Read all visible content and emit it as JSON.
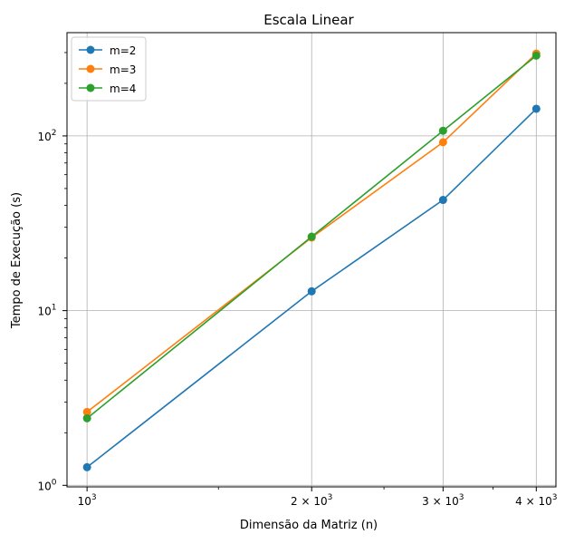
{
  "chart_data": {
    "type": "line",
    "title": "Escala Linear",
    "xlabel": "Dimensão da Matriz (n)",
    "ylabel": "Tempo de Execução (s)",
    "xscale": "log",
    "yscale": "log",
    "xlim": [
      940,
      4250
    ],
    "ylim": [
      0.98,
      390
    ],
    "grid": true,
    "legend_position": "top-left",
    "x": [
      1000,
      2000,
      3000,
      4000
    ],
    "series": [
      {
        "name": "m=2",
        "color": "#1f77b4",
        "values": [
          1.27,
          12.9,
          43,
          143
        ]
      },
      {
        "name": "m=3",
        "color": "#ff7f0e",
        "values": [
          2.63,
          26.2,
          92,
          296
        ]
      },
      {
        "name": "m=4",
        "color": "#2ca02c",
        "values": [
          2.42,
          26.5,
          107,
          288
        ]
      }
    ],
    "x_ticks": [
      {
        "value": 1000,
        "base": "10",
        "exp": "3"
      },
      {
        "value": 2000,
        "base": "2 × 10",
        "exp": "3"
      },
      {
        "value": 3000,
        "base": "3 × 10",
        "exp": "3"
      },
      {
        "value": 4000,
        "base": "4 × 10",
        "exp": "3"
      }
    ],
    "y_ticks": [
      {
        "value": 1,
        "base": "10",
        "exp": "0"
      },
      {
        "value": 10,
        "base": "10",
        "exp": "1"
      },
      {
        "value": 100,
        "base": "10",
        "exp": "2"
      }
    ]
  }
}
